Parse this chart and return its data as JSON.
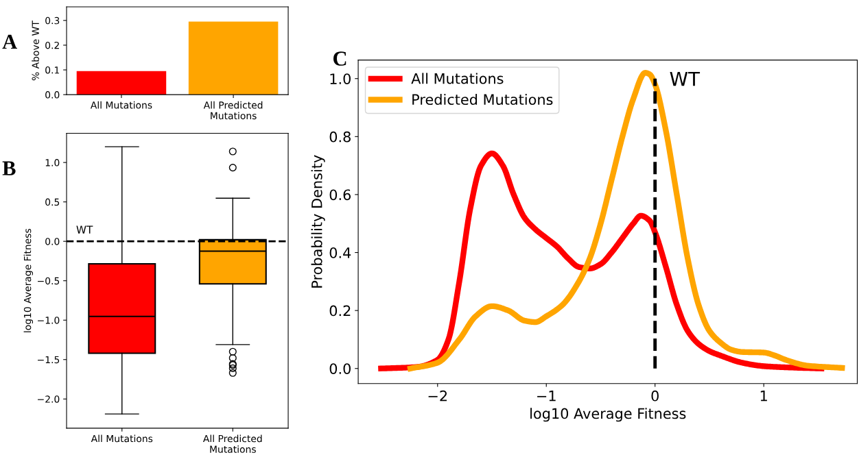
{
  "chart_data": [
    {
      "type": "bar",
      "title": "A",
      "ylabel": "% Above WT",
      "categories": [
        "All Mutations",
        "All Predicted\nMutations"
      ],
      "values": [
        0.095,
        0.295
      ],
      "colors": [
        "#ff0000",
        "#ffa500"
      ],
      "ylim": [
        0,
        0.355
      ],
      "yticks": [
        {
          "value": 0,
          "label": "0.0"
        },
        0.1,
        0.2,
        0.3
      ],
      "grid": false,
      "legend": false
    },
    {
      "type": "box",
      "title": "B",
      "ylabel": "log10 Average Fitness",
      "categories": [
        "All Mutations",
        "All Predicted\nMutations"
      ],
      "colors": [
        "#ff0000",
        "#ffa500"
      ],
      "boxes": [
        {
          "low": -2.19,
          "q1": -1.42,
          "median": -0.953,
          "q3": -0.285,
          "high": 1.2
        },
        {
          "low": -1.31,
          "q1": -0.54,
          "median": -0.125,
          "q3": 0.02,
          "high": 0.547,
          "outliers": [
            1.14,
            0.935,
            -1.4,
            -1.48,
            -1.555,
            -1.57,
            -1.61,
            -1.67
          ]
        }
      ],
      "ylim": [
        -2.37,
        1.37
      ],
      "yticks": [
        {
          "value": -2,
          "label": "−2.0"
        },
        {
          "value": -1.5,
          "label": "−1.5"
        },
        {
          "value": -1,
          "label": "−1.0"
        },
        {
          "value": -0.5,
          "label": "−0.5"
        },
        {
          "value": 0,
          "label": "0.0"
        },
        0.5,
        {
          "value": 1,
          "label": "1.0"
        }
      ],
      "ref_lines": [
        {
          "axis": "y",
          "value": 0,
          "label": "WT",
          "color": "#000000",
          "line_style": "dashed"
        }
      ],
      "grid": false,
      "legend": false
    },
    {
      "type": "line",
      "title": "C",
      "xlabel": "log10 Average Fitness",
      "ylabel": "Probability Density",
      "legend": "top left",
      "grid": false,
      "marker": "none",
      "line_style": "solid",
      "series": [
        {
          "name": "All Mutations",
          "color": "#ff0000",
          "x": [
            -2.52,
            -2.2,
            -2.0,
            -1.9,
            -1.8,
            -1.7,
            -1.6,
            -1.5,
            -1.4,
            -1.3,
            -1.2,
            -1.1,
            -1.0,
            -0.9,
            -0.8,
            -0.7,
            -0.6,
            -0.5,
            -0.4,
            -0.3,
            -0.2,
            -0.13,
            -0.05,
            0,
            0.1,
            0.2,
            0.3,
            0.4,
            0.5,
            0.6,
            0.8,
            1.0,
            1.2,
            1.53
          ],
          "values": [
            0.0,
            0.005,
            0.03,
            0.1,
            0.3,
            0.55,
            0.7,
            0.742,
            0.7,
            0.6,
            0.52,
            0.48,
            0.45,
            0.42,
            0.38,
            0.35,
            0.345,
            0.36,
            0.4,
            0.45,
            0.5,
            0.527,
            0.51,
            0.47,
            0.35,
            0.22,
            0.13,
            0.085,
            0.06,
            0.045,
            0.02,
            0.008,
            0.004,
            0.0
          ]
        },
        {
          "name": "Predicted Mutations",
          "color": "#ffa500",
          "x": [
            -2.25,
            -2.0,
            -1.8,
            -1.65,
            -1.5,
            -1.35,
            -1.2,
            -1.1,
            -1.0,
            -0.85,
            -0.7,
            -0.6,
            -0.5,
            -0.4,
            -0.3,
            -0.2,
            -0.09,
            -0.05,
            0,
            0.1,
            0.2,
            0.3,
            0.4,
            0.5,
            0.6,
            0.7,
            0.8,
            1.0,
            1.1,
            1.2,
            1.4,
            1.72
          ],
          "values": [
            0.0,
            0.02,
            0.1,
            0.18,
            0.215,
            0.2,
            0.165,
            0.16,
            0.18,
            0.22,
            0.3,
            0.38,
            0.5,
            0.65,
            0.8,
            0.93,
            1.02,
            1.015,
            0.98,
            0.82,
            0.6,
            0.38,
            0.22,
            0.13,
            0.09,
            0.065,
            0.057,
            0.055,
            0.045,
            0.03,
            0.01,
            0.002
          ]
        }
      ],
      "xlim": [
        -2.73,
        1.86
      ],
      "ylim": [
        -0.052,
        1.064
      ],
      "xticks": [
        {
          "value": -2,
          "label": "−2"
        },
        {
          "value": -1,
          "label": "−1"
        },
        0,
        1
      ],
      "yticks": [
        {
          "value": 0,
          "label": "0.0"
        },
        0.2,
        0.4,
        0.6,
        0.8,
        {
          "value": 1,
          "label": "1.0"
        }
      ],
      "ref_lines": [
        {
          "axis": "x",
          "value": 0,
          "label": "WT",
          "color": "#000000",
          "line_style": "dashed"
        }
      ]
    }
  ]
}
